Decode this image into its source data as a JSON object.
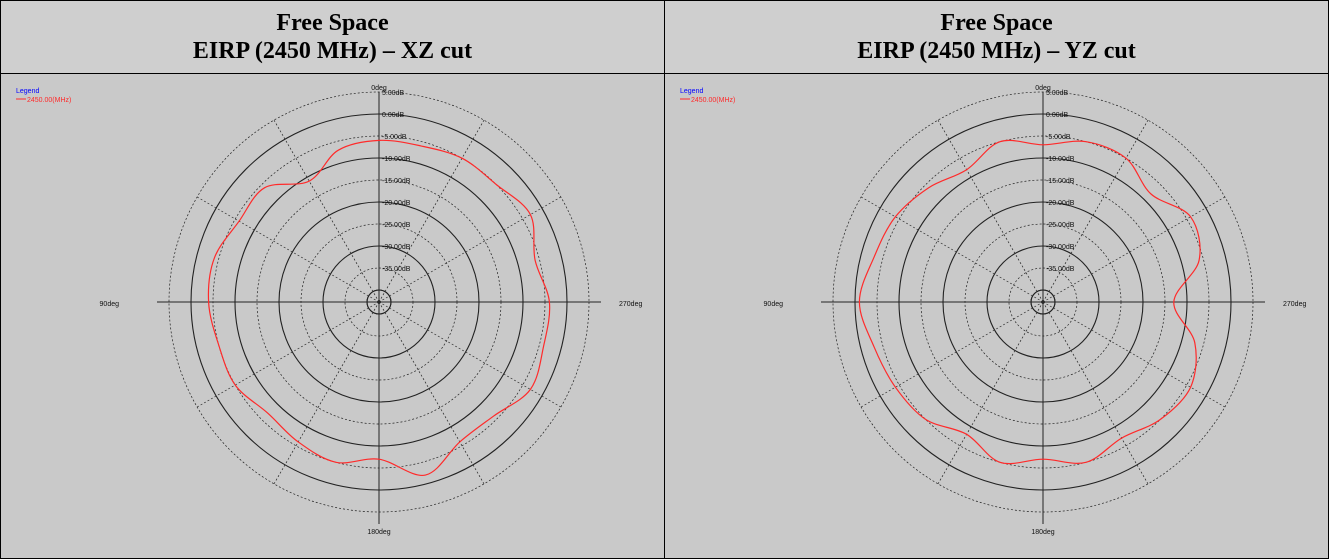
{
  "colors": {
    "trace": "#ff2a2a",
    "legend_title": "#0000ff",
    "grid": "#222222",
    "background": "#c9c9c9"
  },
  "panels": [
    {
      "title_line1": "Free Space",
      "title_line2": "EIRP (2450 MHz) – XZ cut"
    },
    {
      "title_line1": "Free Space",
      "title_line2": "EIRP (2450 MHz) – YZ cut"
    }
  ],
  "chart_data": [
    {
      "type": "polar-line",
      "title": "Free Space EIRP (2450 MHz) – XZ cut",
      "legend_title": "Legend",
      "legend_placement": "top-left",
      "angle_labels": [
        "0deg",
        "90deg",
        "180deg",
        "270deg"
      ],
      "radial_tick_labels": [
        "5.00dB",
        "0.00dB",
        "-5.00dB",
        "-10.00dB",
        "-15.00dB",
        "-20.00dB",
        "-25.00dB",
        "-30.00dB",
        "-35.00dB"
      ],
      "radial_range_db": [
        -40,
        5
      ],
      "series": [
        {
          "name": "2450.00(MHz)",
          "angles_deg": [
            0,
            15,
            30,
            45,
            60,
            75,
            90,
            105,
            120,
            135,
            150,
            165,
            180,
            195,
            210,
            225,
            240,
            255,
            270,
            285,
            300,
            315,
            330,
            345
          ],
          "values_db": [
            -6,
            -7,
            -11,
            -6,
            -6,
            -4,
            -4,
            -5,
            -5,
            -7,
            -6,
            -5,
            -7,
            -2,
            -6,
            -6,
            -3,
            -4,
            -4,
            -6,
            -3,
            -5,
            -5,
            -6
          ]
        }
      ]
    },
    {
      "type": "polar-line",
      "title": "Free Space EIRP (2450 MHz) – YZ cut",
      "legend_title": "Legend",
      "legend_placement": "top-left",
      "angle_labels": [
        "0deg",
        "90deg",
        "180deg",
        "270deg"
      ],
      "radial_tick_labels": [
        "5.00dB",
        "0.00dB",
        "-5.00dB",
        "-10.00dB",
        "-15.00dB",
        "-20.00dB",
        "-25.00dB",
        "-30.00dB",
        "-35.00dB"
      ],
      "radial_range_db": [
        -40,
        5
      ],
      "series": [
        {
          "name": "2450.00(MHz)",
          "angles_deg": [
            0,
            15,
            30,
            45,
            60,
            75,
            90,
            105,
            120,
            135,
            150,
            165,
            180,
            195,
            210,
            225,
            240,
            255,
            270,
            285,
            300,
            315,
            330,
            345
          ],
          "values_db": [
            -7,
            -5,
            -8,
            -6,
            -4,
            -3,
            -1,
            -3,
            -4,
            -5,
            -8,
            -5,
            -7,
            -5,
            -7,
            -5,
            -4,
            -7,
            -13,
            -6,
            -4,
            -8,
            -5,
            -5
          ]
        }
      ]
    }
  ]
}
